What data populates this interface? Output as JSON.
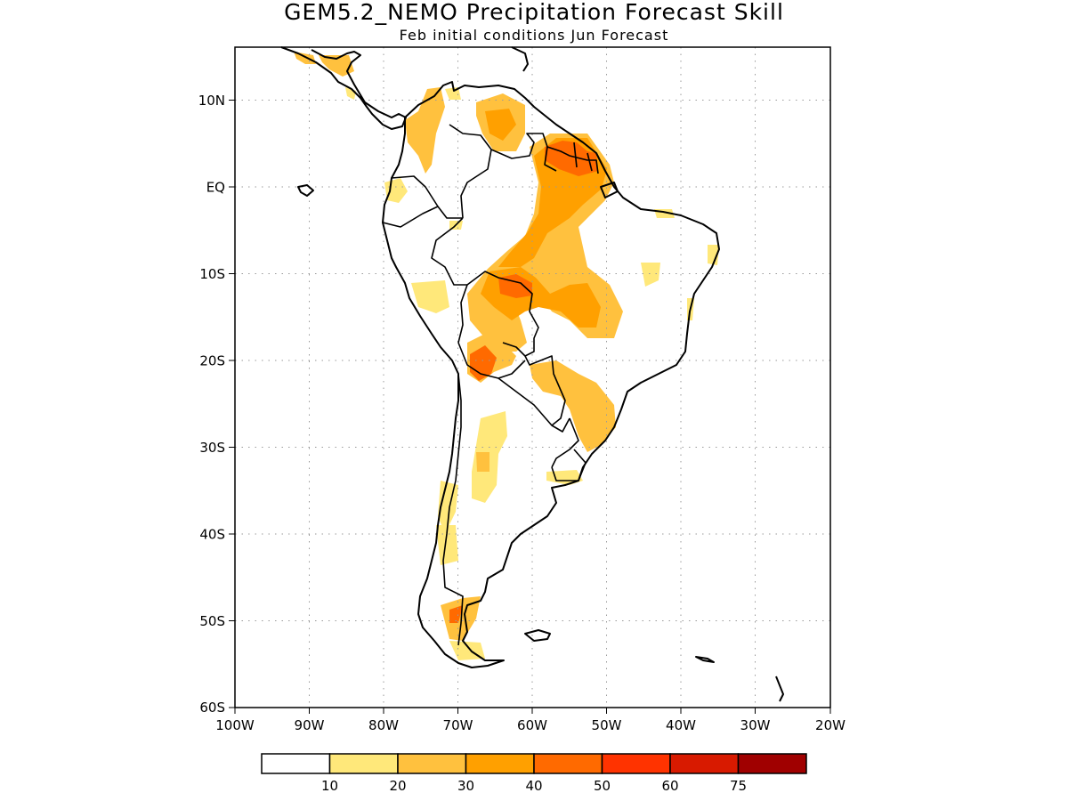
{
  "title": "GEM5.2_NEMO Precipitation Forecast Skill",
  "subtitle": "Feb initial conditions  Jun Forecast",
  "lon_labels": [
    "100W",
    "90W",
    "80W",
    "70W",
    "60W",
    "50W",
    "40W",
    "30W",
    "20W"
  ],
  "lat_labels": [
    "10N",
    "EQ",
    "10S",
    "20S",
    "30S",
    "40S",
    "50S",
    "60S"
  ],
  "colorbar": {
    "labels": [
      "10",
      "20",
      "30",
      "40",
      "50",
      "60",
      "75"
    ],
    "colors": [
      "#ffffff",
      "#ffe87a",
      "#ffc13e",
      "#ffa000",
      "#ff6a00",
      "#ff3300",
      "#d81a00",
      "#a00000"
    ]
  }
}
